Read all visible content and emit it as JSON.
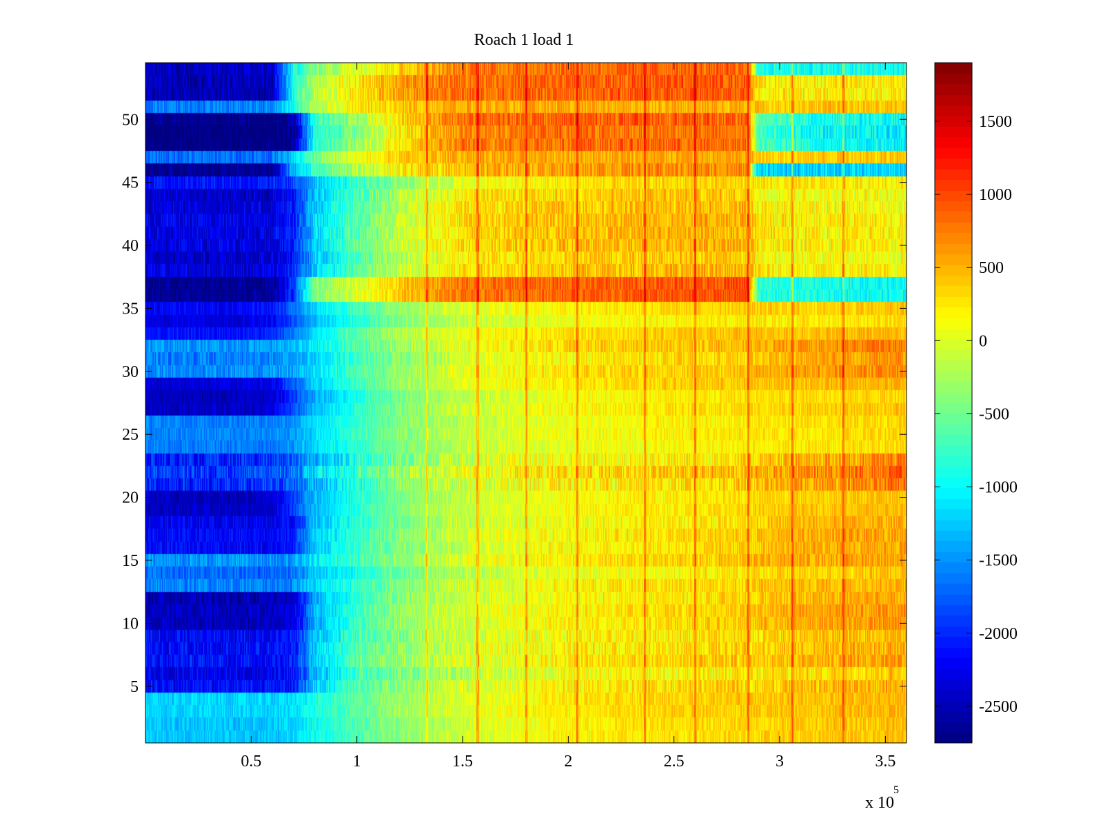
{
  "chart_data": {
    "type": "heatmap",
    "title": "Roach 1 load 1",
    "xlabel": "",
    "ylabel": "",
    "x_multiplier_label": "x 10",
    "x_multiplier_exponent": "5",
    "xlim": [
      0,
      360000
    ],
    "ylim": [
      0.5,
      54.5
    ],
    "rows": 54,
    "x_ticks": [
      {
        "value": 50000,
        "label": "0.5"
      },
      {
        "value": 100000,
        "label": "1"
      },
      {
        "value": 150000,
        "label": "1.5"
      },
      {
        "value": 200000,
        "label": "2"
      },
      {
        "value": 250000,
        "label": "2.5"
      },
      {
        "value": 300000,
        "label": "3"
      },
      {
        "value": 350000,
        "label": "3.5"
      }
    ],
    "y_ticks": [
      {
        "value": 5,
        "label": "5"
      },
      {
        "value": 10,
        "label": "10"
      },
      {
        "value": 15,
        "label": "15"
      },
      {
        "value": 20,
        "label": "20"
      },
      {
        "value": 25,
        "label": "25"
      },
      {
        "value": 30,
        "label": "30"
      },
      {
        "value": 35,
        "label": "35"
      },
      {
        "value": 40,
        "label": "40"
      },
      {
        "value": 45,
        "label": "45"
      },
      {
        "value": 50,
        "label": "50"
      }
    ],
    "colorbar": {
      "colormap": "jet",
      "range": [
        -2750,
        1900
      ],
      "ticks": [
        {
          "value": -2500,
          "label": "-2500"
        },
        {
          "value": -2000,
          "label": "-2000"
        },
        {
          "value": -1500,
          "label": "-1500"
        },
        {
          "value": -1000,
          "label": "-1000"
        },
        {
          "value": -500,
          "label": "-500"
        },
        {
          "value": 0,
          "label": "0"
        },
        {
          "value": 500,
          "label": "500"
        },
        {
          "value": 1000,
          "label": "1000"
        },
        {
          "value": 1500,
          "label": "1500"
        }
      ]
    },
    "profile_x": [
      0,
      20000,
      40000,
      60000,
      70000,
      80000,
      100000,
      120000,
      150000,
      200000,
      250000,
      285000,
      290000,
      320000,
      360000
    ],
    "row_groups": [
      {
        "rows": [
          1,
          4
        ],
        "profile": [
          -1300,
          -1300,
          -1300,
          -1300,
          -1250,
          -1000,
          -700,
          -400,
          -100,
          150,
          250,
          300,
          300,
          350,
          400
        ],
        "jitter": 200
      },
      {
        "rows": [
          5,
          9
        ],
        "profile": [
          -2200,
          -2200,
          -2200,
          -2200,
          -2100,
          -1300,
          -700,
          -400,
          -100,
          150,
          250,
          300,
          300,
          400,
          500
        ],
        "jitter": 300
      },
      {
        "rows": [
          10,
          12
        ],
        "profile": [
          -2500,
          -2500,
          -2500,
          -2500,
          -2400,
          -1400,
          -800,
          -400,
          -100,
          150,
          250,
          350,
          400,
          500,
          600
        ],
        "jitter": 250
      },
      {
        "rows": [
          13,
          15
        ],
        "profile": [
          -1600,
          -1600,
          -1600,
          -1600,
          -1550,
          -1200,
          -800,
          -450,
          -100,
          150,
          250,
          350,
          400,
          450,
          500
        ],
        "jitter": 250
      },
      {
        "rows": [
          16,
          18
        ],
        "profile": [
          -2200,
          -2200,
          -2200,
          -2200,
          -2100,
          -1300,
          -800,
          -450,
          -100,
          150,
          250,
          350,
          400,
          500,
          550
        ],
        "jitter": 250
      },
      {
        "rows": [
          19,
          20
        ],
        "profile": [
          -2400,
          -2400,
          -2400,
          -2350,
          -1800,
          -1300,
          -800,
          -400,
          -50,
          200,
          300,
          350,
          400,
          450,
          500
        ],
        "jitter": 200
      },
      {
        "rows": [
          21,
          23
        ],
        "profile": [
          -2000,
          -2000,
          -2000,
          -1900,
          -1700,
          -1300,
          -800,
          -400,
          0,
          200,
          300,
          400,
          450,
          600,
          800
        ],
        "jitter": 350
      },
      {
        "rows": [
          24,
          26
        ],
        "profile": [
          -1500,
          -1500,
          -1500,
          -1500,
          -1400,
          -1100,
          -700,
          -350,
          -50,
          150,
          250,
          300,
          300,
          350,
          400
        ],
        "jitter": 200
      },
      {
        "rows": [
          27,
          29
        ],
        "profile": [
          -2400,
          -2400,
          -2400,
          -2300,
          -1800,
          -1300,
          -800,
          -400,
          -50,
          200,
          300,
          350,
          350,
          400,
          450
        ],
        "jitter": 200
      },
      {
        "rows": [
          30,
          32
        ],
        "profile": [
          -1600,
          -1600,
          -1600,
          -1550,
          -1450,
          -1200,
          -750,
          -400,
          -50,
          200,
          300,
          350,
          400,
          550,
          650
        ],
        "jitter": 250
      },
      {
        "rows": [
          33,
          35
        ],
        "profile": [
          -2200,
          -2200,
          -2200,
          -2100,
          -1700,
          -1200,
          -700,
          -300,
          0,
          200,
          300,
          350,
          350,
          350,
          400
        ],
        "jitter": 200
      },
      {
        "rows": [
          36,
          37
        ],
        "profile": [
          -2750,
          -2750,
          -2750,
          -2750,
          -2000,
          -500,
          -100,
          300,
          700,
          800,
          850,
          900,
          -900,
          -1000,
          -1050
        ],
        "jitter": 250
      },
      {
        "rows": [
          38,
          44
        ],
        "profile": [
          -2300,
          -2300,
          -2300,
          -2300,
          -2000,
          -1200,
          -600,
          -100,
          300,
          450,
          500,
          500,
          250,
          200,
          200
        ],
        "jitter": 300
      },
      {
        "rows": [
          45,
          45
        ],
        "profile": [
          -2000,
          -2000,
          -2000,
          -2000,
          -1800,
          -1200,
          -700,
          -300,
          100,
          300,
          400,
          400,
          300,
          300,
          300
        ],
        "jitter": 250
      },
      {
        "rows": [
          46,
          46
        ],
        "profile": [
          -2600,
          -2600,
          -2600,
          -2600,
          -1200,
          -600,
          -100,
          300,
          600,
          750,
          800,
          800,
          -1100,
          -1100,
          -1100
        ],
        "jitter": 300
      },
      {
        "rows": [
          47,
          47
        ],
        "profile": [
          -1700,
          -1700,
          -1700,
          -1700,
          -1200,
          -500,
          0,
          300,
          500,
          500,
          500,
          500,
          300,
          350,
          400
        ],
        "jitter": 250
      },
      {
        "rows": [
          48,
          50
        ],
        "profile": [
          -2750,
          -2750,
          -2750,
          -2750,
          -2600,
          -800,
          -300,
          300,
          800,
          900,
          900,
          850,
          -600,
          -900,
          -1000
        ],
        "jitter": 300
      },
      {
        "rows": [
          51,
          51
        ],
        "profile": [
          -1700,
          -1700,
          -1700,
          -1700,
          -1000,
          -300,
          100,
          300,
          400,
          400,
          400,
          400,
          300,
          300,
          300
        ],
        "jitter": 250
      },
      {
        "rows": [
          52,
          53
        ],
        "profile": [
          -2600,
          -2600,
          -2600,
          -2600,
          -1000,
          -300,
          100,
          500,
          700,
          750,
          800,
          800,
          100,
          100,
          100
        ],
        "jitter": 300
      },
      {
        "rows": [
          54,
          54
        ],
        "profile": [
          -2500,
          -2500,
          -2500,
          -2500,
          -1000,
          -500,
          0,
          300,
          700,
          800,
          800,
          800,
          -900,
          -1000,
          -1000
        ],
        "jitter": 300
      }
    ],
    "vertical_streaks_x": [
      108000,
      133000,
      157000,
      180000,
      204000,
      236000,
      260000,
      285000,
      306000,
      330000
    ]
  }
}
